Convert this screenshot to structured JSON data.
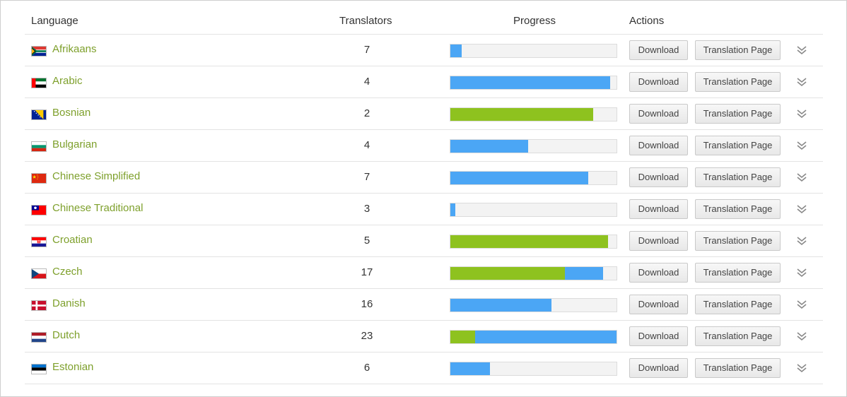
{
  "table": {
    "headers": {
      "language": "Language",
      "translators": "Translators",
      "progress": "Progress",
      "actions": "Actions"
    },
    "download_label": "Download",
    "translation_page_label": "Translation Page",
    "colors": {
      "link": "#7ea02c",
      "progress_green": "#8ec21f",
      "progress_blue": "#4ba6f5"
    },
    "rows": [
      {
        "language": "Afrikaans",
        "flag_icon": "south-africa-flag-icon",
        "translators": "7",
        "progress_green": 0,
        "progress_blue": 0.07
      },
      {
        "language": "Arabic",
        "flag_icon": "uae-flag-icon",
        "translators": "4",
        "progress_green": 0,
        "progress_blue": 0.96
      },
      {
        "language": "Bosnian",
        "flag_icon": "bosnia-flag-icon",
        "translators": "2",
        "progress_green": 0.86,
        "progress_blue": 0
      },
      {
        "language": "Bulgarian",
        "flag_icon": "bulgaria-flag-icon",
        "translators": "4",
        "progress_green": 0,
        "progress_blue": 0.47
      },
      {
        "language": "Chinese Simplified",
        "flag_icon": "china-flag-icon",
        "translators": "7",
        "progress_green": 0,
        "progress_blue": 0.83
      },
      {
        "language": "Chinese Traditional",
        "flag_icon": "taiwan-flag-icon",
        "translators": "3",
        "progress_green": 0,
        "progress_blue": 0.03
      },
      {
        "language": "Croatian",
        "flag_icon": "croatia-flag-icon",
        "translators": "5",
        "progress_green": 0.95,
        "progress_blue": 0
      },
      {
        "language": "Czech",
        "flag_icon": "czech-flag-icon",
        "translators": "17",
        "progress_green": 0.69,
        "progress_blue": 0.23
      },
      {
        "language": "Danish",
        "flag_icon": "denmark-flag-icon",
        "translators": "16",
        "progress_green": 0,
        "progress_blue": 0.61
      },
      {
        "language": "Dutch",
        "flag_icon": "netherlands-flag-icon",
        "translators": "23",
        "progress_green": 0.15,
        "progress_blue": 0.85
      },
      {
        "language": "Estonian",
        "flag_icon": "estonia-flag-icon",
        "translators": "6",
        "progress_green": 0,
        "progress_blue": 0.24
      }
    ]
  }
}
